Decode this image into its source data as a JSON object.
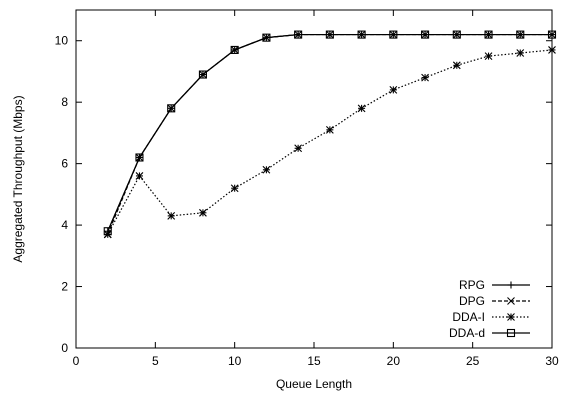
{
  "chart_data": {
    "type": "line",
    "title": "",
    "xlabel": "Queue Length",
    "ylabel": "Aggregated Throughput (Mbps)",
    "xlim": [
      0,
      30
    ],
    "ylim": [
      0,
      11
    ],
    "xticks": [
      0,
      5,
      10,
      15,
      20,
      25,
      30
    ],
    "yticks": [
      0,
      2,
      4,
      6,
      8,
      10
    ],
    "grid": false,
    "legend_position": "bottom-right",
    "series": [
      {
        "name": "RPG",
        "marker": "plus",
        "line": "solid",
        "x": [
          2,
          4,
          6,
          8,
          10,
          12,
          14,
          16,
          18,
          20,
          22,
          24,
          26,
          28,
          30
        ],
        "y": [
          3.8,
          6.2,
          7.8,
          8.9,
          9.7,
          10.1,
          10.2,
          10.2,
          10.2,
          10.2,
          10.2,
          10.2,
          10.2,
          10.2,
          10.2
        ]
      },
      {
        "name": "DPG",
        "marker": "x",
        "line": "dashed",
        "x": [
          2,
          4,
          6,
          8,
          10,
          12,
          14,
          16,
          18,
          20,
          22,
          24,
          26,
          28,
          30
        ],
        "y": [
          3.7,
          6.2,
          7.8,
          8.9,
          9.7,
          10.1,
          10.2,
          10.2,
          10.2,
          10.2,
          10.2,
          10.2,
          10.2,
          10.2,
          10.2
        ]
      },
      {
        "name": "DDA-I",
        "marker": "star",
        "line": "dotted",
        "x": [
          2,
          4,
          6,
          8,
          10,
          12,
          14,
          16,
          18,
          20,
          22,
          24,
          26,
          28,
          30
        ],
        "y": [
          3.7,
          5.6,
          4.3,
          4.4,
          5.2,
          5.8,
          6.5,
          7.1,
          7.8,
          8.4,
          8.8,
          9.2,
          9.5,
          9.6,
          9.7
        ]
      },
      {
        "name": "DDA-d",
        "marker": "square",
        "line": "solid",
        "x": [
          2,
          4,
          6,
          8,
          10,
          12,
          14,
          16,
          18,
          20,
          22,
          24,
          26,
          28,
          30
        ],
        "y": [
          3.8,
          6.2,
          7.8,
          8.9,
          9.7,
          10.1,
          10.2,
          10.2,
          10.2,
          10.2,
          10.2,
          10.2,
          10.2,
          10.2,
          10.2
        ]
      }
    ]
  }
}
